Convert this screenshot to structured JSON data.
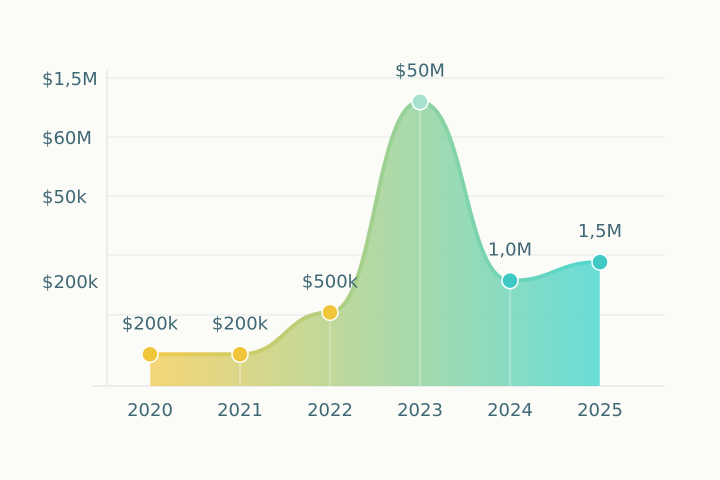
{
  "chart_data": {
    "type": "line",
    "categories": [
      "2020",
      "2021",
      "2022",
      "2023",
      "2024",
      "2025"
    ],
    "values": [
      200000,
      200000,
      500000,
      50000000,
      1000000,
      1500000
    ],
    "value_labels": [
      "$200k",
      "$200k",
      "$500k",
      "$50M",
      "1,0M",
      "1,5M"
    ],
    "y_axis_labels": [
      "$1,5M",
      "$60M",
      "$50k",
      "$200k"
    ],
    "log_scale": true,
    "ylim": [
      100000,
      100000000
    ],
    "colors": [
      "#f2c94c",
      "#4fd8d2"
    ],
    "point_colors": [
      "#f0c53a",
      "#f0c53a",
      "#f0c53a",
      "#a6e0cf",
      "#3fc9c4",
      "#3fc9c4"
    ]
  }
}
